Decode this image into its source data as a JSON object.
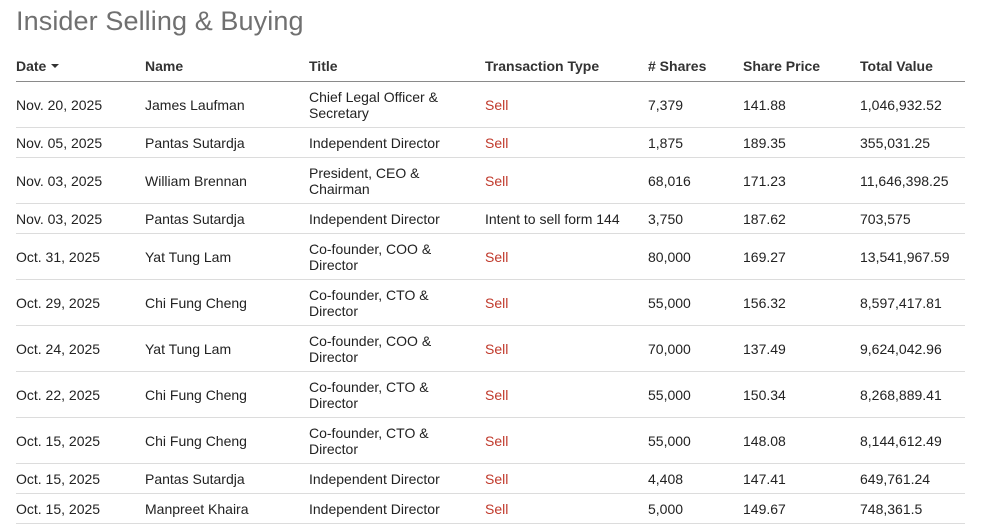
{
  "page": {
    "title": "Insider Selling & Buying"
  },
  "table": {
    "headers": {
      "date": "Date",
      "name": "Name",
      "title": "Title",
      "type": "Transaction Type",
      "shares": "# Shares",
      "price": "Share Price",
      "total": "Total Value"
    },
    "sort": {
      "column": "date",
      "direction": "descending",
      "icon": "caret-down-icon"
    },
    "sell_color": "#c0392b",
    "rows": [
      {
        "date": "Nov. 20, 2025",
        "name": "James Laufman",
        "title": "Chief Legal Officer & Secretary",
        "type": "Sell",
        "shares": "7,379",
        "price": "141.88",
        "total": "1,046,932.52"
      },
      {
        "date": "Nov. 05, 2025",
        "name": "Pantas Sutardja",
        "title": "Independent Director",
        "type": "Sell",
        "shares": "1,875",
        "price": "189.35",
        "total": "355,031.25"
      },
      {
        "date": "Nov. 03, 2025",
        "name": "William Brennan",
        "title": "President, CEO & Chairman",
        "type": "Sell",
        "shares": "68,016",
        "price": "171.23",
        "total": "11,646,398.25"
      },
      {
        "date": "Nov. 03, 2025",
        "name": "Pantas Sutardja",
        "title": "Independent Director",
        "type": "Intent to sell form 144",
        "shares": "3,750",
        "price": "187.62",
        "total": "703,575"
      },
      {
        "date": "Oct. 31, 2025",
        "name": "Yat Tung Lam",
        "title": "Co-founder, COO & Director",
        "type": "Sell",
        "shares": "80,000",
        "price": "169.27",
        "total": "13,541,967.59"
      },
      {
        "date": "Oct. 29, 2025",
        "name": "Chi Fung Cheng",
        "title": "Co-founder, CTO & Director",
        "type": "Sell",
        "shares": "55,000",
        "price": "156.32",
        "total": "8,597,417.81"
      },
      {
        "date": "Oct. 24, 2025",
        "name": "Yat Tung Lam",
        "title": "Co-founder, COO & Director",
        "type": "Sell",
        "shares": "70,000",
        "price": "137.49",
        "total": "9,624,042.96"
      },
      {
        "date": "Oct. 22, 2025",
        "name": "Chi Fung Cheng",
        "title": "Co-founder, CTO & Director",
        "type": "Sell",
        "shares": "55,000",
        "price": "150.34",
        "total": "8,268,889.41"
      },
      {
        "date": "Oct. 15, 2025",
        "name": "Chi Fung Cheng",
        "title": "Co-founder, CTO & Director",
        "type": "Sell",
        "shares": "55,000",
        "price": "148.08",
        "total": "8,144,612.49"
      },
      {
        "date": "Oct. 15, 2025",
        "name": "Pantas Sutardja",
        "title": "Independent Director",
        "type": "Sell",
        "shares": "4,408",
        "price": "147.41",
        "total": "649,761.24"
      },
      {
        "date": "Oct. 15, 2025",
        "name": "Manpreet Khaira",
        "title": "Independent Director",
        "type": "Sell",
        "shares": "5,000",
        "price": "149.67",
        "total": "748,361.5"
      }
    ]
  }
}
